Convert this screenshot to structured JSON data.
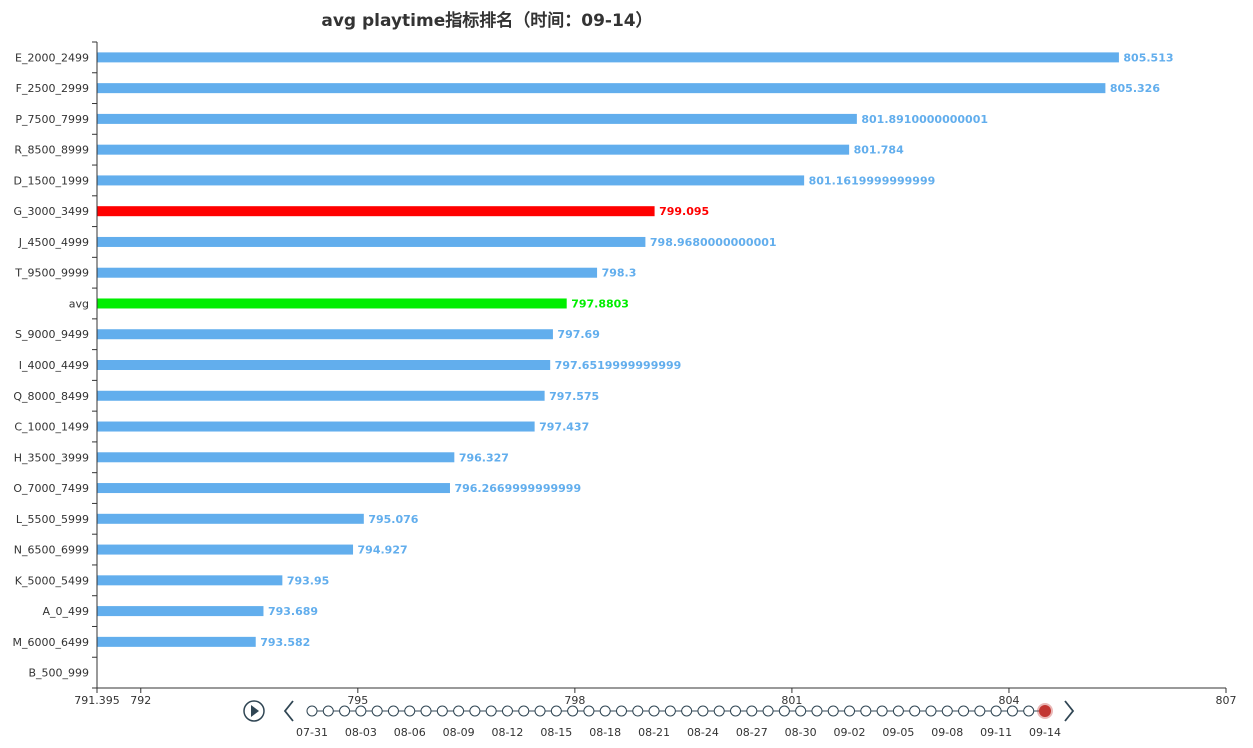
{
  "chart_data": {
    "type": "bar",
    "orientation": "horizontal",
    "title": "avg playtime指标排名（时间：09-14）",
    "categories": [
      "E_2000_2499",
      "F_2500_2999",
      "P_7500_7999",
      "R_8500_8999",
      "D_1500_1999",
      "G_3000_3499",
      "J_4500_4999",
      "T_9500_9999",
      "avg",
      "S_9000_9499",
      "I_4000_4499",
      "Q_8000_8499",
      "C_1000_1499",
      "H_3500_3999",
      "O_7000_7499",
      "L_5500_5999",
      "N_6500_6999",
      "K_5000_5499",
      "A_0_499",
      "M_6000_6499",
      "B_500_999"
    ],
    "values": [
      805.513,
      805.326,
      801.8910000000001,
      801.784,
      801.1619999999999,
      799.095,
      798.9680000000001,
      798.3,
      797.8803,
      797.69,
      797.6519999999999,
      797.575,
      797.437,
      796.327,
      796.2669999999999,
      795.076,
      794.927,
      793.95,
      793.689,
      793.582,
      null
    ],
    "labels": [
      "805.513",
      "805.326",
      "801.8910000000001",
      "801.784",
      "801.1619999999999",
      "799.095",
      "798.9680000000001",
      "798.3",
      "797.8803",
      "797.69",
      "797.6519999999999",
      "797.575",
      "797.437",
      "796.327",
      "796.2669999999999",
      "795.076",
      "794.927",
      "793.95",
      "793.689",
      "793.582",
      ""
    ],
    "highlight": {
      "G_3000_3499": "#ff0000",
      "avg": "#00ee00"
    },
    "default_color": "#62aeed",
    "xlim": [
      791.395,
      807
    ],
    "x_ticks": [
      "791.395",
      "792",
      "795",
      "798",
      "801",
      "804",
      "807"
    ],
    "grid": false,
    "legend": "none"
  },
  "timeline": {
    "labels": [
      "07-31",
      "08-03",
      "08-06",
      "08-09",
      "08-12",
      "08-15",
      "08-18",
      "08-21",
      "08-24",
      "08-27",
      "08-30",
      "09-02",
      "09-05",
      "09-08",
      "09-11",
      "09-14"
    ],
    "total_points": 46,
    "current": "09-14",
    "play_icon": "play-icon",
    "prev_icon": "chevron-left-icon",
    "next_icon": "chevron-right-icon"
  },
  "colors": {
    "axis": "#333333",
    "timeline": "#304654",
    "current": "#c23531"
  }
}
